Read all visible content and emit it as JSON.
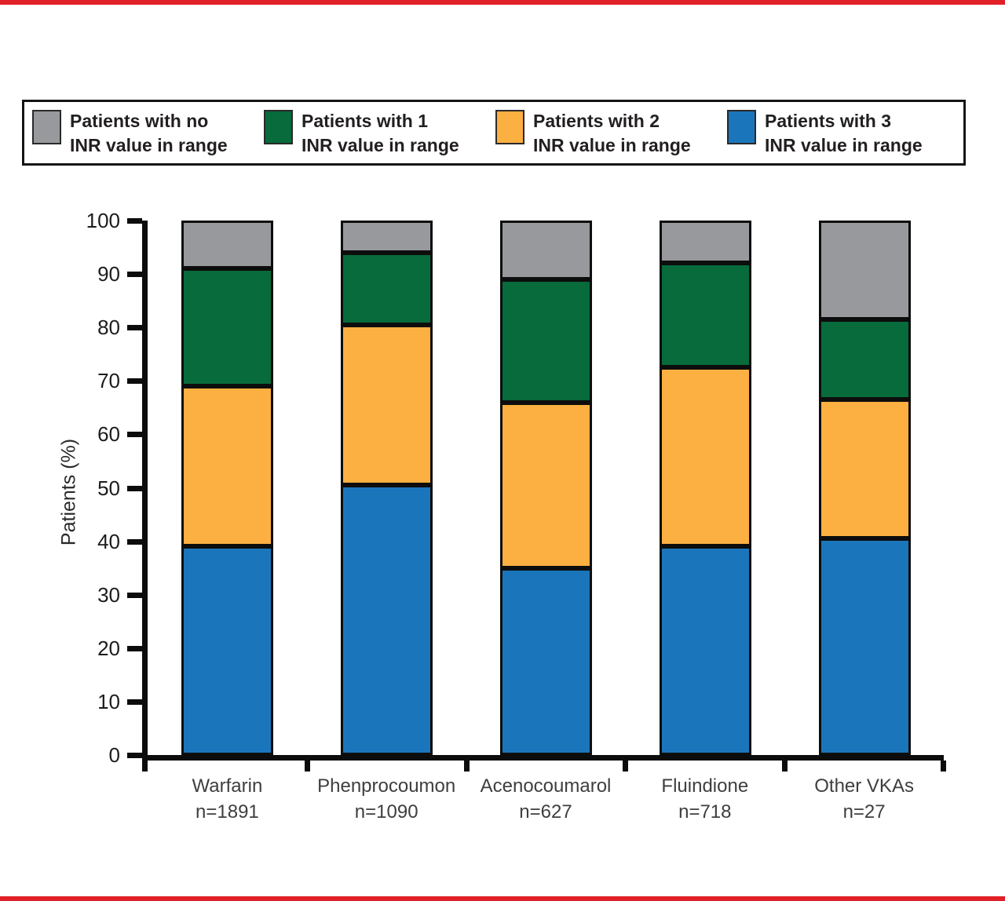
{
  "page": {
    "background": "#FFFFFF",
    "top_rule_color": "#E01F26",
    "bottom_rule_color": "#E01F26"
  },
  "legend": {
    "items": [
      {
        "line1": "Patients with no",
        "line2": "INR value in range",
        "color": "#97999C"
      },
      {
        "line1": "Patients with 1",
        "line2": "INR value in range",
        "color": "#076B3B"
      },
      {
        "line1": "Patients with 2",
        "line2": "INR value in range",
        "color": "#FBB041"
      },
      {
        "line1": "Patients with 3",
        "line2": "INR value in range",
        "color": "#1B75BB"
      }
    ]
  },
  "chart_data": {
    "type": "bar",
    "subtype": "stacked-percent",
    "title": "",
    "ylabel": "Patients (%)",
    "xlabel": "",
    "ylim": [
      0,
      100
    ],
    "yticks": [
      0,
      10,
      20,
      30,
      40,
      50,
      60,
      70,
      80,
      90,
      100
    ],
    "grid": false,
    "legend_position": "top",
    "categories": [
      {
        "label": "Warfarin",
        "n_label": "n=1891"
      },
      {
        "label": "Phenprocoumon",
        "n_label": "n=1090"
      },
      {
        "label": "Acenocoumarol",
        "n_label": "n=627"
      },
      {
        "label": "Fluindione",
        "n_label": "n=718"
      },
      {
        "label": "Other VKAs",
        "n_label": "n=27"
      }
    ],
    "series": [
      {
        "name": "Patients with no INR value in range",
        "color": "#97999C",
        "values": [
          9,
          6,
          11,
          8,
          18.5
        ]
      },
      {
        "name": "Patients with 1 INR value in range",
        "color": "#076B3B",
        "values": [
          22,
          13.5,
          23,
          19.5,
          15
        ]
      },
      {
        "name": "Patients with 2 INR value in range",
        "color": "#FBB041",
        "values": [
          30,
          30,
          31,
          33.5,
          26
        ]
      },
      {
        "name": "Patients with 3 INR value in range",
        "color": "#1B75BB",
        "values": [
          39,
          50.5,
          35,
          39,
          40.5
        ]
      }
    ],
    "stack_order_bottom_to_top": [
      "Patients with 3 INR value in range",
      "Patients with 2 INR value in range",
      "Patients with 1 INR value in range",
      "Patients with no INR value in range"
    ]
  }
}
